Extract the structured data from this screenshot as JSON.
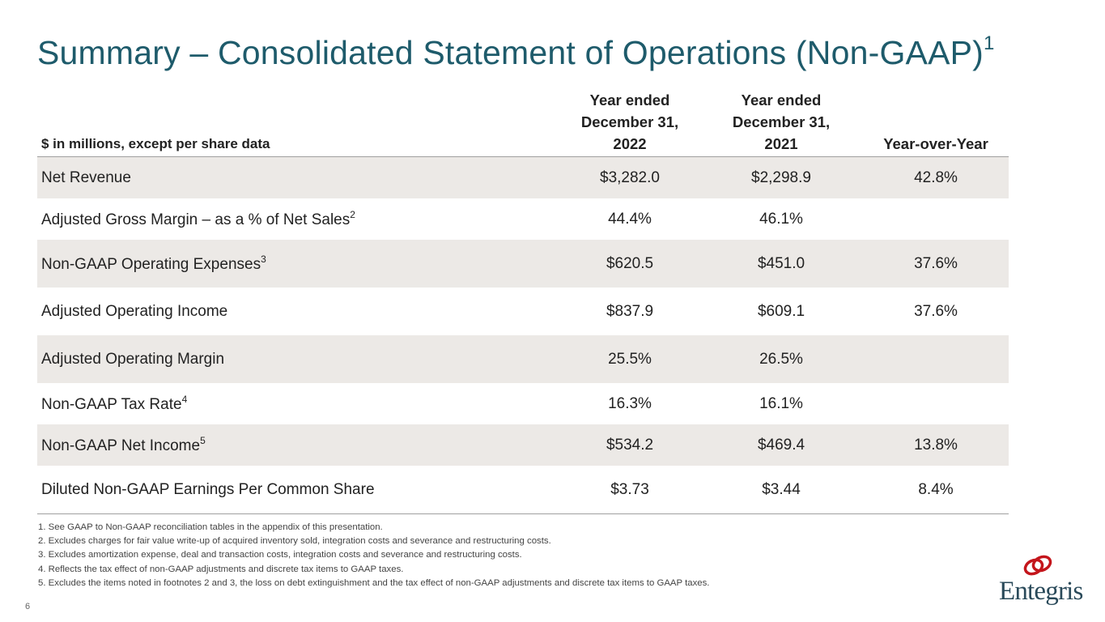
{
  "title": {
    "text": "Summary – Consolidated Statement of Operations (Non-GAAP)",
    "footnote": "1"
  },
  "table": {
    "header": {
      "label": "$ in millions, except per share data",
      "col1": [
        "Year ended",
        "December 31,",
        "2022"
      ],
      "col2": [
        "Year ended",
        "December 31,",
        "2021"
      ],
      "col3": "Year-over-Year"
    },
    "rows": [
      {
        "label": "Net Revenue",
        "sup": "",
        "v2022": "$3,282.0",
        "v2021": "$2,298.9",
        "yoy": "42.8%"
      },
      {
        "label": "Adjusted Gross Margin – as a % of Net Sales",
        "sup": "2",
        "v2022": "44.4%",
        "v2021": "46.1%",
        "yoy": ""
      },
      {
        "label": "Non-GAAP Operating Expenses",
        "sup": "3",
        "v2022": "$620.5",
        "v2021": "$451.0",
        "yoy": "37.6%"
      },
      {
        "label": "Adjusted Operating Income",
        "sup": "",
        "v2022": "$837.9",
        "v2021": "$609.1",
        "yoy": "37.6%"
      },
      {
        "label": "Adjusted Operating Margin",
        "sup": "",
        "v2022": "25.5%",
        "v2021": "26.5%",
        "yoy": ""
      },
      {
        "label": "Non-GAAP Tax Rate",
        "sup": "4",
        "v2022": "16.3%",
        "v2021": "16.1%",
        "yoy": ""
      },
      {
        "label": "Non-GAAP Net Income",
        "sup": "5",
        "v2022": "$534.2",
        "v2021": "$469.4",
        "yoy": "13.8%"
      },
      {
        "label": "Diluted Non-GAAP Earnings Per Common Share",
        "sup": "",
        "v2022": "$3.73",
        "v2021": "$3.44",
        "yoy": "8.4%"
      }
    ]
  },
  "footnotes": [
    "1. See GAAP to Non-GAAP reconciliation tables in the appendix of this presentation.",
    "2. Excludes charges for fair value write-up of acquired inventory sold, integration costs  and severance and restructuring costs.",
    "3. Excludes amortization expense, deal and transaction costs, integration costs and severance and restructuring costs.",
    "4. Reflects the tax effect of non-GAAP adjustments and discrete tax items to GAAP taxes.",
    "5. Excludes the items noted in footnotes 2 and 3, the loss on debt extinguishment and the tax effect of non-GAAP adjustments and discrete tax items to GAAP taxes."
  ],
  "page_number": "6",
  "logo": {
    "text": "Entegris",
    "mark_color": "#c4161c",
    "text_color": "#2a4a5a"
  },
  "colors": {
    "title": "#1e5b6b",
    "row_shade": "#ece9e6"
  }
}
